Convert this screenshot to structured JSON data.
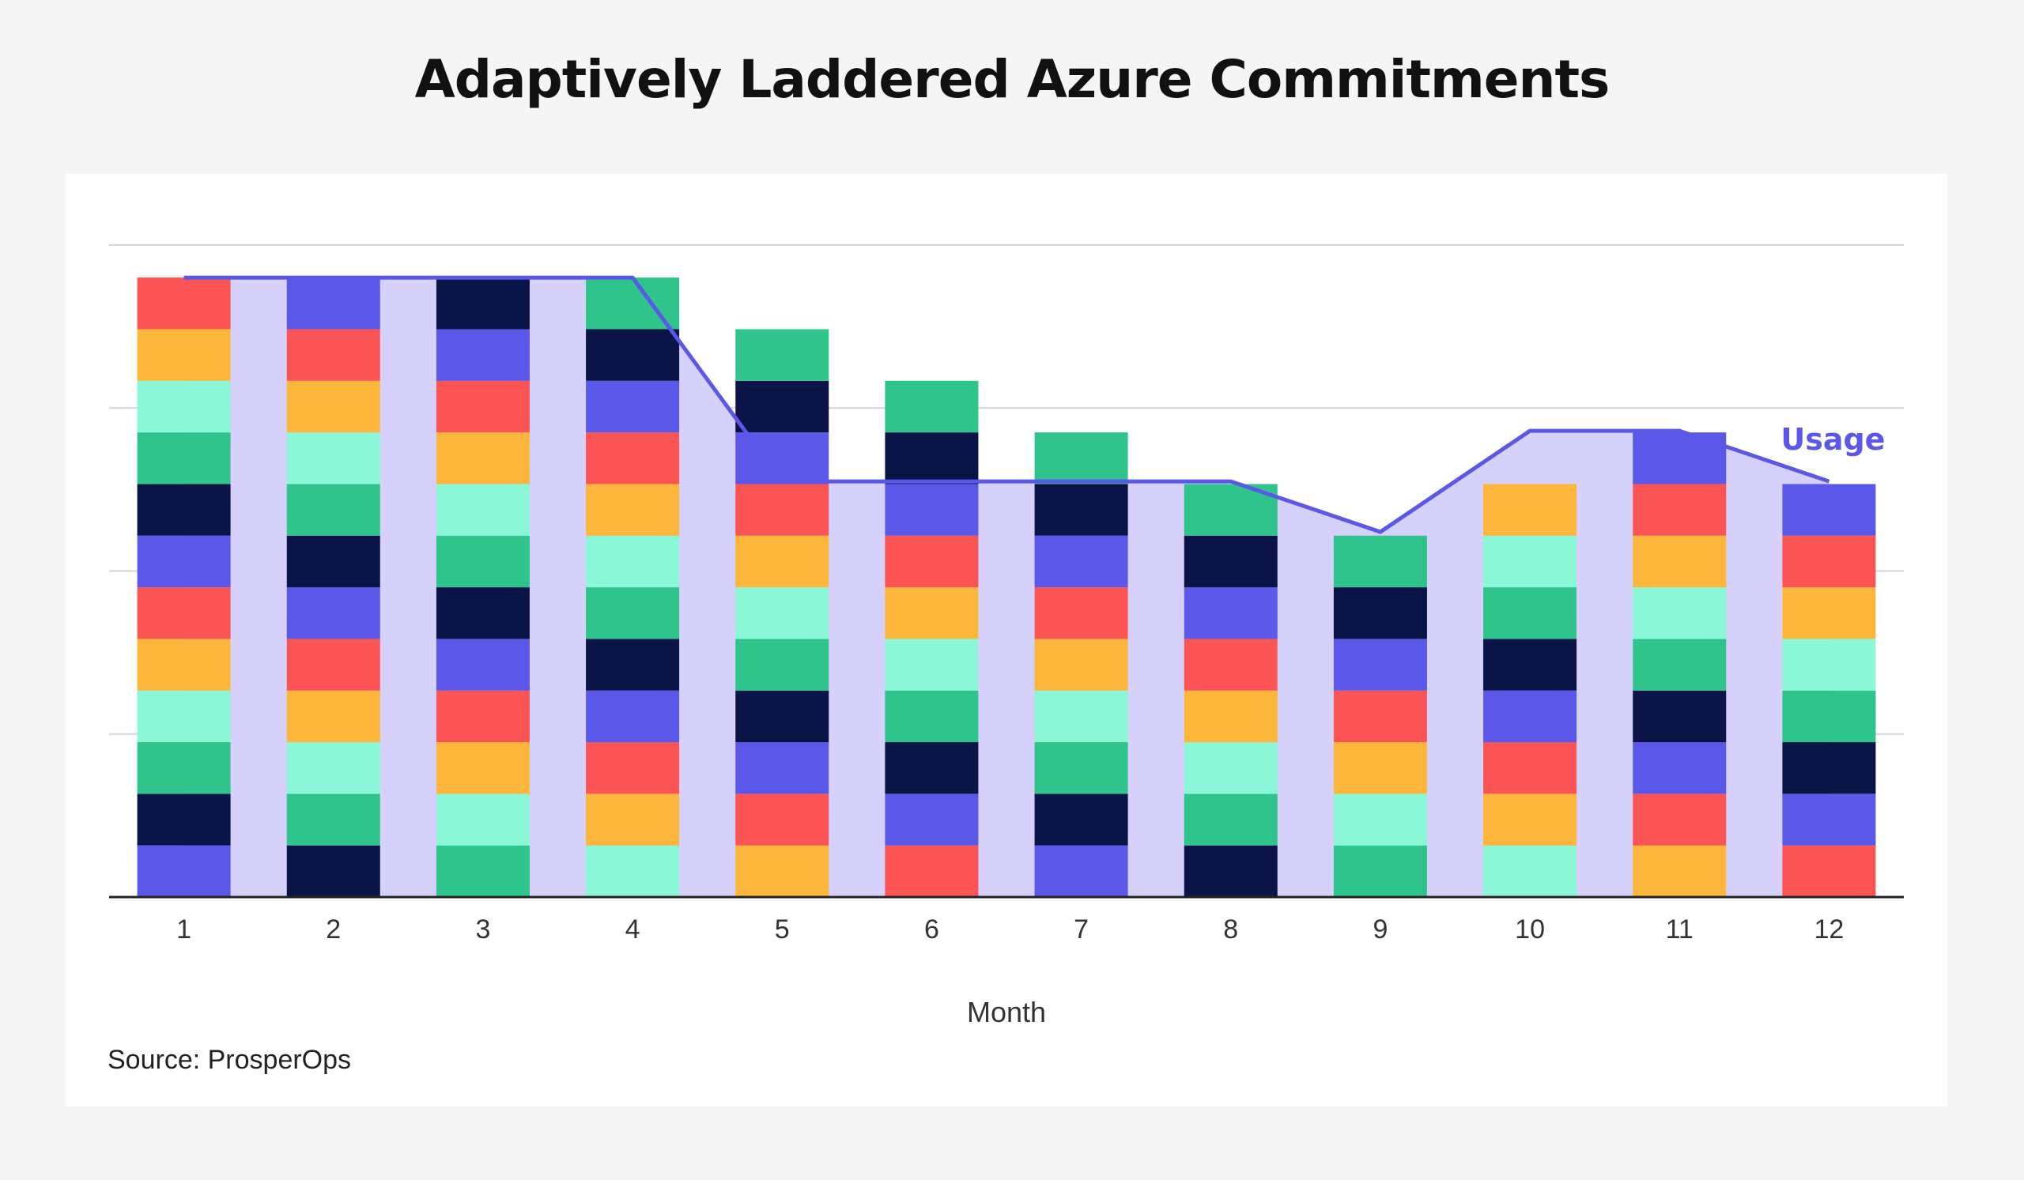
{
  "title": "Adaptively Laddered Azure Commitments",
  "source": "Source: ProsperOps",
  "chart_data": {
    "type": "bar",
    "stacked": true,
    "title": "Adaptively Laddered Azure Commitments",
    "xlabel": "Month",
    "ylabel": "",
    "ylim": [
      0,
      4
    ],
    "grid": true,
    "y_ticks_labeled": false,
    "categories": [
      "1",
      "2",
      "3",
      "4",
      "5",
      "6",
      "7",
      "8",
      "9",
      "10",
      "11",
      "12"
    ],
    "stack_values": [
      12,
      12,
      12,
      12,
      11,
      10,
      9,
      8,
      7,
      8,
      9,
      8
    ],
    "segment_value": 0.3167,
    "segment_color_cycle": [
      "#5b57e8",
      "#0a1447",
      "#2ec48b",
      "#8cf7d6",
      "#fbb63b",
      "#fb5454"
    ],
    "series": [
      {
        "name": "Usage",
        "type": "line",
        "color": "#5b57e8",
        "values": [
          3.8,
          3.8,
          3.8,
          3.8,
          2.55,
          2.55,
          2.55,
          2.55,
          2.24,
          2.86,
          2.86,
          2.55
        ]
      }
    ],
    "usage_area_color": "#d5d1fb",
    "legend": "inline-right",
    "annotations": [
      {
        "text": "Usage",
        "color": "#5b57e8"
      }
    ]
  }
}
